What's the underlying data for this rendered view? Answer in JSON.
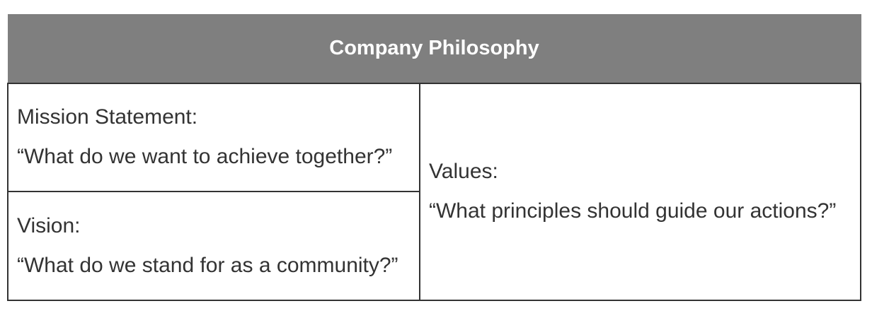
{
  "table": {
    "title": "Company Philosophy",
    "mission": {
      "label": "Mission Statement:",
      "question": "“What do we want to achieve together?”"
    },
    "vision": {
      "label": "Vision:",
      "question": "“What do we stand for as a community?”"
    },
    "values": {
      "label": "Values:",
      "question": "“What principles should guide our actions?”"
    }
  },
  "colors": {
    "header_background": "#7f7f7f",
    "header_text": "#ffffff",
    "border": "#333333",
    "body_text": "#333333"
  }
}
